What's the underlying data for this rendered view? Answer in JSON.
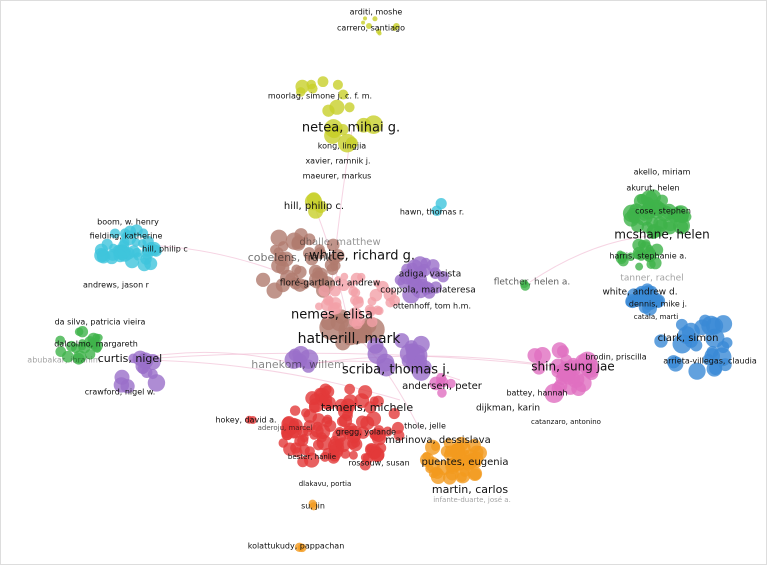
{
  "nodes": [
    {
      "label": "arditi, moshe"
    },
    {
      "label": "carrero, santiago"
    },
    {
      "label": "moorlag, simone j. c. f. m."
    },
    {
      "label": "netea, mihai g."
    },
    {
      "label": "kong, lingjia"
    },
    {
      "label": "xavier, ramnik j."
    },
    {
      "label": "maeurer, markus"
    },
    {
      "label": "hill, philip c."
    },
    {
      "label": "hawn, thomas r."
    },
    {
      "label": "boom, w. henry"
    },
    {
      "label": "fielding, katherine"
    },
    {
      "label": "hill, philip c"
    },
    {
      "label": "andrews, jason r"
    },
    {
      "label": "dhalle, matthew"
    },
    {
      "label": "cobelens, frank"
    },
    {
      "label": "white, richard g."
    },
    {
      "label": "floré-gartland, andrew"
    },
    {
      "label": "nemes, elisa"
    },
    {
      "label": "hatherill, mark"
    },
    {
      "label": "adiga, vasista"
    },
    {
      "label": "coppola, mariateresa"
    },
    {
      "label": "ottenhoff, tom h.m."
    },
    {
      "label": "curtis, nigel"
    },
    {
      "label": "crawford, nigel w."
    },
    {
      "label": "scriba, thomas j."
    },
    {
      "label": "hanekom, willem"
    },
    {
      "label": "fletcher, helen a."
    },
    {
      "label": "akello, miriam"
    },
    {
      "label": "akurut, helen"
    },
    {
      "label": "cose, stephen"
    },
    {
      "label": "mcshane, helen"
    },
    {
      "label": "harris, stephanie a."
    },
    {
      "label": "tanner, rachel"
    },
    {
      "label": "da silva, patricia vieira"
    },
    {
      "label": "dalcolmo, margareth"
    },
    {
      "label": "abubakar, ibrahim"
    },
    {
      "label": "white, andrew d."
    },
    {
      "label": "dennis, mike j."
    },
    {
      "label": "catala, marti"
    },
    {
      "label": "clark, simon"
    },
    {
      "label": "brodin, priscilla"
    },
    {
      "label": "arrieta-villegas, claudia"
    },
    {
      "label": "shin, sung jae"
    },
    {
      "label": "battey, hannah"
    },
    {
      "label": "andersen, peter"
    },
    {
      "label": "dijkman, karin"
    },
    {
      "label": "catanzaro, antonino"
    },
    {
      "label": "tameris, michele"
    },
    {
      "label": "hokey, david a."
    },
    {
      "label": "aderoju, marcel"
    },
    {
      "label": "gregg, yolande"
    },
    {
      "label": "bester, hanlie"
    },
    {
      "label": "rossouw, susan"
    },
    {
      "label": "dlakavu, portia"
    },
    {
      "label": "su, jin"
    },
    {
      "label": "kolattukudy, pappachan"
    },
    {
      "label": "thole, jelle"
    },
    {
      "label": "marinova, dessislava"
    },
    {
      "label": "puentes, eugenia"
    },
    {
      "label": "martin, carlos"
    },
    {
      "label": "infante-duarte, josé a."
    }
  ]
}
